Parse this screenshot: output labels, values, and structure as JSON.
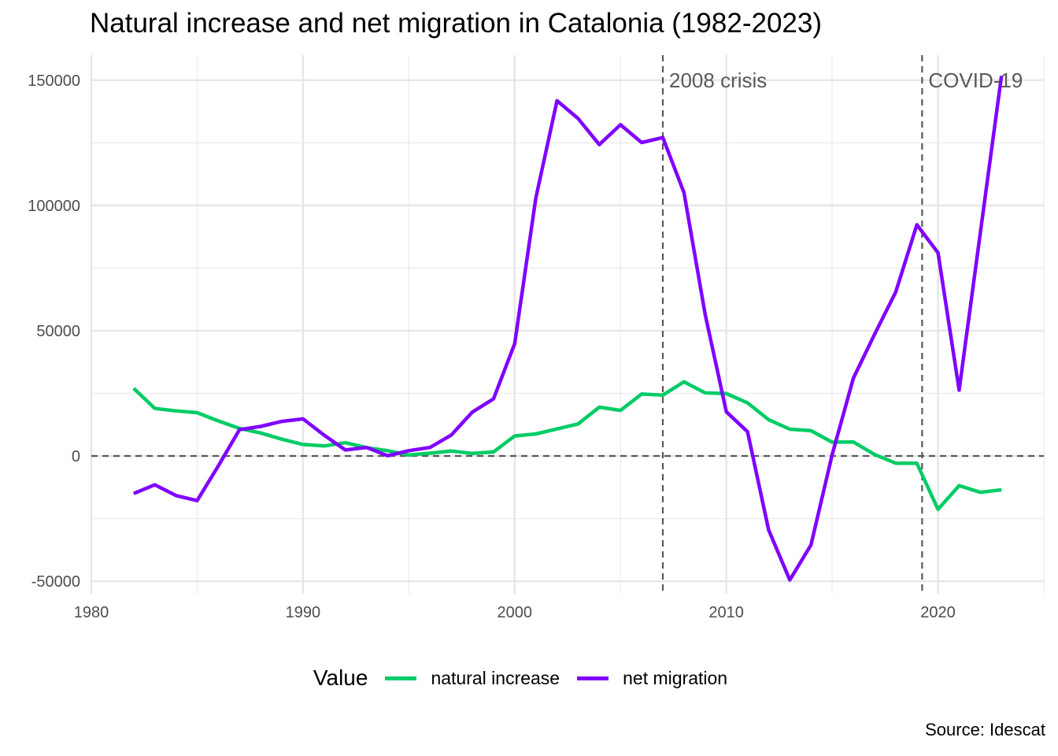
{
  "title": "Natural increase and net migration in Catalonia (1982-2023)",
  "caption": "Source: Idescat",
  "legend": {
    "title": "Value",
    "position": "bottom"
  },
  "chart_data": {
    "type": "line",
    "title": "Natural increase and net migration in Catalonia (1982-2023)",
    "xlabel": "",
    "ylabel": "",
    "xlim": [
      1980,
      2025
    ],
    "ylim": [
      -55000,
      160000
    ],
    "x_ticks": [
      1980,
      1990,
      2000,
      2010,
      2020
    ],
    "y_ticks": [
      -50000,
      0,
      50000,
      100000,
      150000
    ],
    "grid": true,
    "x": [
      1982,
      1983,
      1984,
      1985,
      1986,
      1987,
      1988,
      1989,
      1990,
      1991,
      1992,
      1993,
      1994,
      1995,
      1996,
      1997,
      1998,
      1999,
      2000,
      2001,
      2002,
      2003,
      2004,
      2005,
      2006,
      2007,
      2008,
      2009,
      2010,
      2011,
      2012,
      2013,
      2014,
      2015,
      2016,
      2017,
      2018,
      2019,
      2020,
      2021,
      2022,
      2023
    ],
    "series": [
      {
        "name": "natural increase",
        "color": "#00cc66",
        "values": [
          27000,
          19000,
          18000,
          17300,
          14000,
          11000,
          9200,
          6700,
          4600,
          4000,
          5300,
          3300,
          2100,
          400,
          1100,
          2000,
          1000,
          1600,
          8000,
          8800,
          10800,
          12800,
          19500,
          18200,
          24700,
          24300,
          29600,
          25200,
          24900,
          21200,
          14500,
          10700,
          10100,
          5500,
          5600,
          600,
          -2900,
          -2900,
          -21300,
          -11800,
          -14500,
          -13500
        ]
      },
      {
        "name": "net migration",
        "color": "#8000ff",
        "values": [
          -15000,
          -11500,
          -15800,
          -17800,
          -4000,
          10500,
          11800,
          13800,
          14800,
          8300,
          2400,
          3400,
          100,
          2100,
          3400,
          8300,
          17500,
          22800,
          44800,
          103000,
          141800,
          134700,
          124300,
          132200,
          125100,
          127100,
          105100,
          56500,
          17600,
          9700,
          -29500,
          -49500,
          -35500,
          500,
          31000,
          48500,
          65400,
          92300,
          81100,
          26300,
          89000,
          151700
        ]
      }
    ],
    "annotations": [
      {
        "type": "hline",
        "y": 0
      },
      {
        "type": "vline",
        "x": 2007,
        "label": "2008 crisis"
      },
      {
        "type": "vline",
        "x": 2019.25,
        "label": "COVID-19"
      }
    ]
  }
}
